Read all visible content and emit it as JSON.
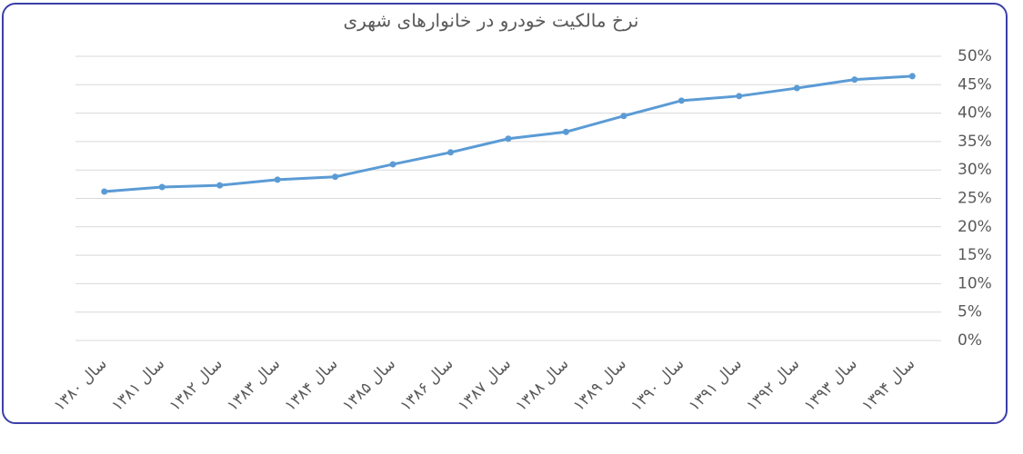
{
  "chart_data": {
    "type": "line",
    "title": "نرخ مالکیت خودرو در خانوارهای شهری",
    "categories": [
      "سال ۱۳۸۰",
      "سال ۱۳۸۱",
      "سال ۱۳۸۲",
      "سال ۱۳۸۳",
      "سال ۱۳۸۴",
      "سال ۱۳۸۵",
      "سال ۱۳۸۶",
      "سال ۱۳۸۷",
      "سال ۱۳۸۸",
      "سال ۱۳۸۹",
      "سال ۱۳۹۰",
      "سال ۱۳۹۱",
      "سال ۱۳۹۲",
      "سال ۱۳۹۳",
      "سال ۱۳۹۴"
    ],
    "values": [
      26.2,
      27.0,
      27.3,
      28.3,
      28.8,
      31.0,
      33.1,
      35.5,
      36.7,
      39.5,
      42.2,
      43.0,
      44.4,
      45.9,
      46.5
    ],
    "color": "#5b9bd5",
    "ylim": [
      0,
      50
    ],
    "yticks": [
      {
        "value": 0,
        "label": "0%"
      },
      {
        "value": 5,
        "label": "5%"
      },
      {
        "value": 10,
        "label": "10%"
      },
      {
        "value": 15,
        "label": "15%"
      },
      {
        "value": 20,
        "label": "20%"
      },
      {
        "value": 25,
        "label": "25%"
      },
      {
        "value": 30,
        "label": "30%"
      },
      {
        "value": 35,
        "label": "35%"
      },
      {
        "value": 40,
        "label": "40%"
      },
      {
        "value": 45,
        "label": "45%"
      },
      {
        "value": 50,
        "label": "50%"
      }
    ],
    "y_axis_side": "right",
    "grid": true
  }
}
